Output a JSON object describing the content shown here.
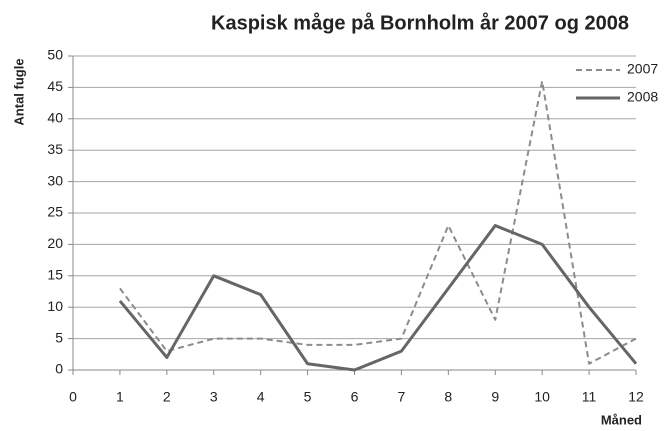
{
  "chart_data": {
    "type": "line",
    "title": "Kaspisk måge på Bornholm år 2007 og 2008",
    "y_label": "Antal fugle",
    "x_label": "Måned",
    "x": [
      1,
      2,
      3,
      4,
      5,
      6,
      7,
      8,
      9,
      10,
      11,
      12
    ],
    "series": [
      {
        "name": "2007",
        "color": "#8c8c8c",
        "line_style": "dashed",
        "values": [
          13,
          3,
          5,
          5,
          4,
          4,
          5,
          23,
          8,
          46,
          1,
          5
        ]
      },
      {
        "name": "2008",
        "color": "#666666",
        "line_style": "solid",
        "values": [
          11,
          2,
          15,
          12,
          1,
          0,
          3,
          13,
          23,
          20,
          10,
          1
        ]
      }
    ],
    "xlim": [
      0,
      12
    ],
    "xticks": [
      0,
      1,
      2,
      3,
      4,
      5,
      6,
      7,
      8,
      9,
      10,
      11,
      12
    ],
    "ylim": [
      0,
      50
    ],
    "yticks": [
      0,
      5,
      10,
      15,
      20,
      25,
      30,
      35,
      40,
      45,
      50
    ],
    "grid": true,
    "legend": "right"
  }
}
